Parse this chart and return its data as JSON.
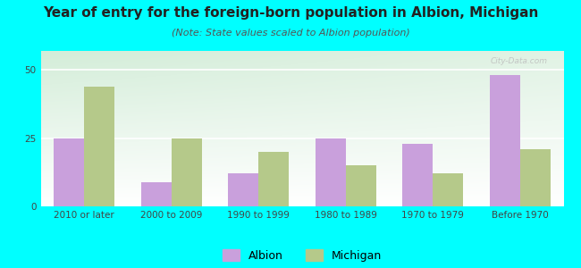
{
  "title": "Year of entry for the foreign-born population in Albion, Michigan",
  "subtitle": "(Note: State values scaled to Albion population)",
  "categories": [
    "2010 or later",
    "2000 to 2009",
    "1990 to 1999",
    "1980 to 1989",
    "1970 to 1979",
    "Before 1970"
  ],
  "albion_values": [
    25,
    9,
    12,
    25,
    23,
    48
  ],
  "michigan_values": [
    44,
    25,
    20,
    15,
    12,
    21
  ],
  "albion_color": "#c9a0dc",
  "michigan_color": "#b5c98a",
  "background_outer": "#00ffff",
  "background_chart_topleft": "#d4edda",
  "background_chart_white": "#ffffff",
  "ylim": [
    0,
    57
  ],
  "yticks": [
    0,
    25,
    50
  ],
  "bar_width": 0.35,
  "title_fontsize": 11,
  "subtitle_fontsize": 8,
  "tick_fontsize": 7.5,
  "legend_fontsize": 9
}
